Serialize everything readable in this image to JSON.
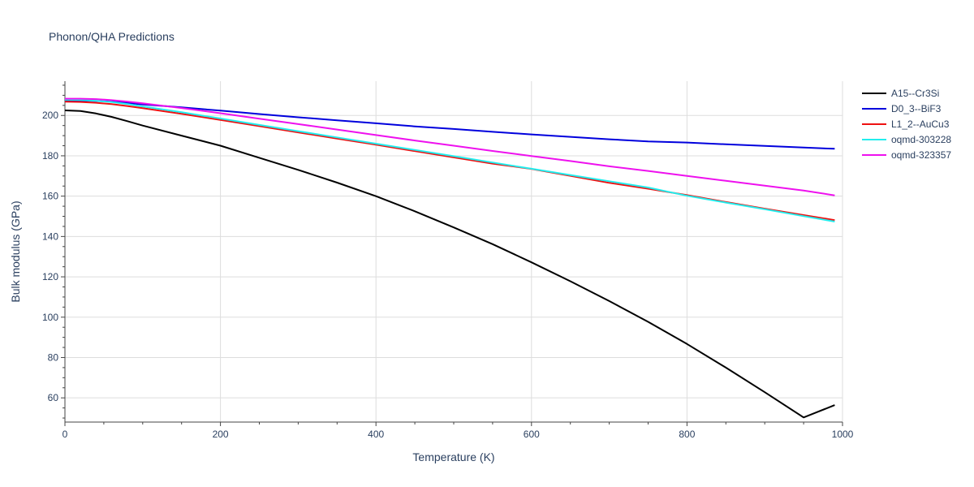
{
  "chart_data": {
    "type": "line",
    "title": "Phonon/QHA Predictions",
    "xlabel": "Temperature (K)",
    "ylabel": "Bulk modulus (GPa)",
    "xlim": [
      0,
      1000
    ],
    "ylim": [
      48,
      217
    ],
    "x_ticks": [
      0,
      200,
      400,
      600,
      800,
      1000
    ],
    "y_ticks": [
      60,
      80,
      100,
      120,
      140,
      160,
      180,
      200
    ],
    "grid": true,
    "legend_position": "right",
    "series": [
      {
        "name": "A15--Cr3Si",
        "color": "#000000",
        "x": [
          0,
          20,
          40,
          60,
          80,
          100,
          150,
          200,
          250,
          300,
          350,
          400,
          450,
          500,
          550,
          600,
          650,
          700,
          750,
          800,
          850,
          900,
          950,
          990
        ],
        "y": [
          202.5,
          202.2,
          201,
          199.3,
          197.2,
          195,
          190,
          185,
          179,
          173,
          166.7,
          160,
          152.5,
          144.5,
          136.2,
          127.2,
          117.8,
          108,
          97.7,
          86.7,
          75,
          62.8,
          50.3,
          56.4
        ]
      },
      {
        "name": "D0_3--BiF3",
        "color": "#0000dd",
        "x": [
          0,
          20,
          40,
          60,
          80,
          100,
          150,
          200,
          250,
          300,
          350,
          400,
          450,
          500,
          550,
          600,
          650,
          700,
          750,
          800,
          850,
          900,
          950,
          990
        ],
        "y": [
          207.5,
          207.4,
          207.2,
          206.8,
          206.2,
          205.5,
          204,
          202.4,
          200.7,
          199.1,
          197.6,
          196.1,
          194.6,
          193.3,
          191.9,
          190.6,
          189.4,
          188.2,
          187.1,
          186.6,
          185.7,
          184.9,
          184.1,
          183.5
        ]
      },
      {
        "name": "L1_2--AuCu3",
        "color": "#ee1111",
        "x": [
          0,
          20,
          40,
          60,
          80,
          100,
          150,
          200,
          250,
          300,
          350,
          400,
          450,
          500,
          550,
          600,
          650,
          700,
          750,
          800,
          850,
          900,
          950,
          990
        ],
        "y": [
          206.8,
          206.7,
          206.3,
          205.6,
          204.7,
          203.6,
          200.8,
          197.8,
          194.7,
          191.6,
          188.5,
          185.5,
          182.3,
          179.2,
          176.1,
          173.5,
          170.1,
          166.6,
          163.7,
          160.5,
          157.1,
          153.8,
          150.6,
          148.1
        ]
      },
      {
        "name": "oqmd-303228",
        "color": "#22eeee",
        "x": [
          0,
          20,
          40,
          60,
          80,
          100,
          150,
          200,
          250,
          300,
          350,
          400,
          450,
          500,
          550,
          600,
          650,
          700,
          750,
          800,
          850,
          900,
          950,
          990
        ],
        "y": [
          207.8,
          207.7,
          207.3,
          206.6,
          205.7,
          204.5,
          201.6,
          198.5,
          195.3,
          192.2,
          189.1,
          186.0,
          182.9,
          179.8,
          176.7,
          173.6,
          170.5,
          167.4,
          164.3,
          160.2,
          156.8,
          153.5,
          150.1,
          147.4
        ]
      },
      {
        "name": "oqmd-323357",
        "color": "#ee11ee",
        "x": [
          0,
          20,
          40,
          60,
          80,
          100,
          150,
          200,
          250,
          300,
          350,
          400,
          450,
          500,
          550,
          600,
          650,
          700,
          750,
          800,
          850,
          900,
          950,
          990
        ],
        "y": [
          208.3,
          208.3,
          208.1,
          207.6,
          206.9,
          206.0,
          203.7,
          201.1,
          198.4,
          195.7,
          193.0,
          190.3,
          187.6,
          185.0,
          182.4,
          179.9,
          177.4,
          174.8,
          172.5,
          170.0,
          167.6,
          165.2,
          162.8,
          160.4
        ]
      }
    ]
  }
}
